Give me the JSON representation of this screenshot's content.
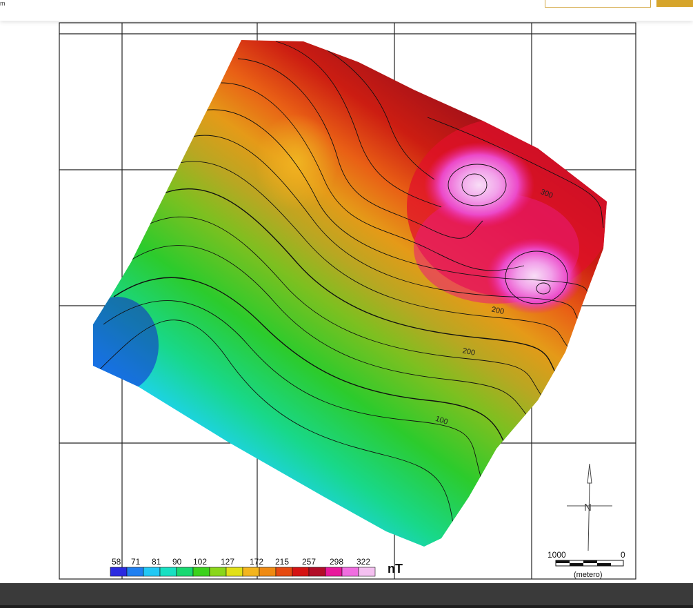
{
  "header": {
    "left_fragment": "m"
  },
  "map": {
    "contour_labels": [
      "300",
      "200",
      "200",
      "100"
    ],
    "north_arrow_letter": "N",
    "scale_bar": {
      "left_label": "1000",
      "right_label": "0",
      "unit": "(metero)"
    },
    "legend": {
      "unit": "nT",
      "ticks": [
        "58",
        "71",
        "81",
        "90",
        "102",
        "127",
        "172",
        "215",
        "257",
        "298",
        "322"
      ],
      "colors": [
        "#2a2ae0",
        "#1f7ff0",
        "#22c8f5",
        "#18e0c2",
        "#18d871",
        "#3cd21c",
        "#8ad61a",
        "#e1e016",
        "#f3b51e",
        "#ef8a12",
        "#e64a10",
        "#d51313",
        "#b20d28",
        "#e8189c",
        "#f06ee0",
        "#f4c0f0"
      ]
    },
    "colors": {
      "low": "#1515dc",
      "mid": "#2ccb2c",
      "high": "#c10d1d",
      "peak": "#f5b5ee"
    }
  }
}
